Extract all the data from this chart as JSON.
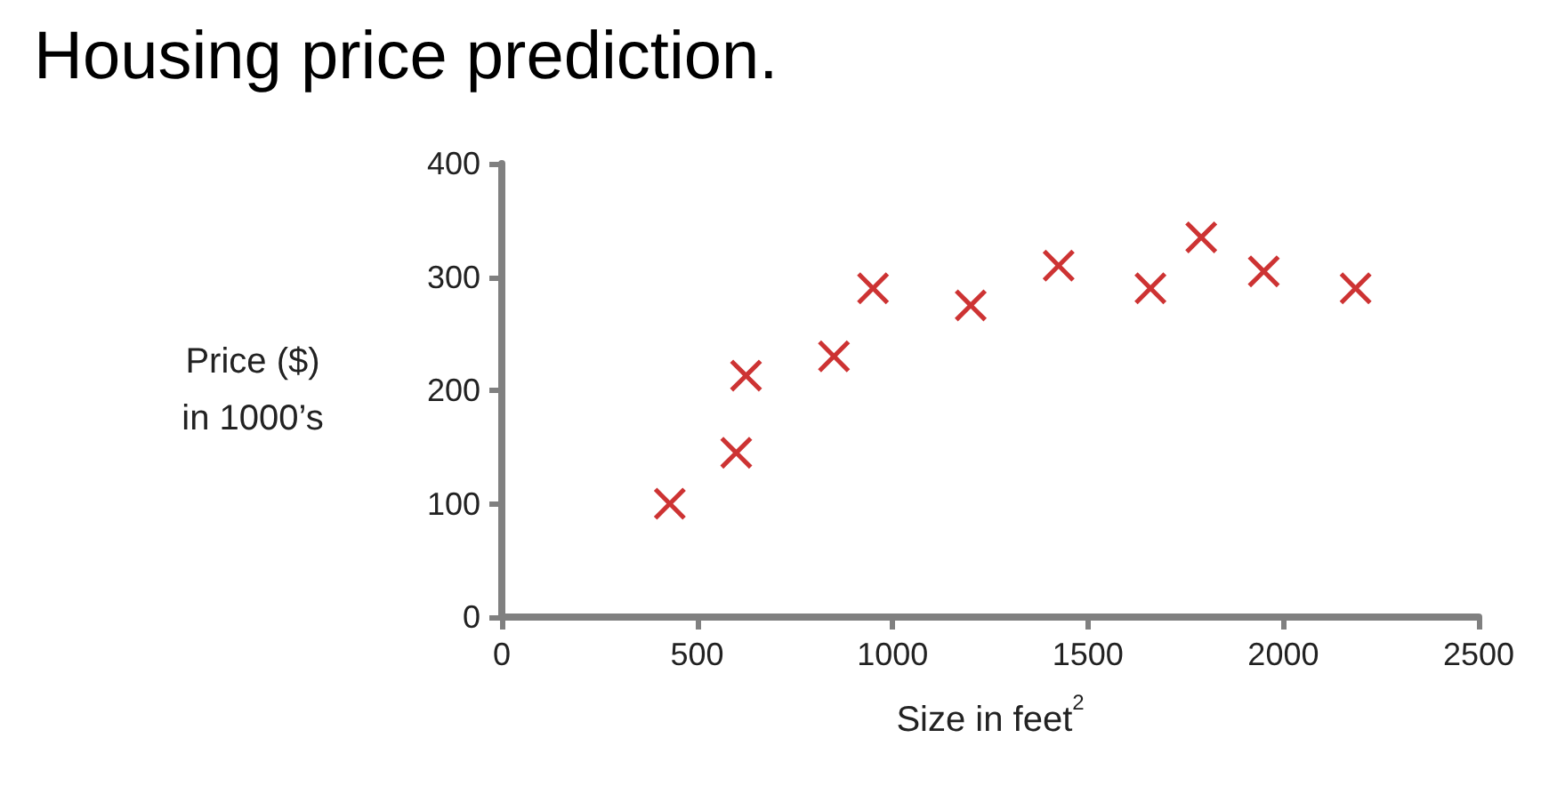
{
  "chart_data": {
    "type": "scatter",
    "title": "Housing price prediction.",
    "xlabel": "Size in feet$^{2}$",
    "ylabel": "Price ($)\nin 1000’s",
    "x": [
      430,
      600,
      625,
      850,
      950,
      1200,
      1425,
      1660,
      1790,
      1950,
      2185
    ],
    "values": [
      100,
      145,
      213,
      230,
      290,
      275,
      310,
      290,
      335,
      305,
      290
    ],
    "color": "#c00000",
    "marker": "cross",
    "xlim": [
      0,
      2500
    ],
    "xticks": [
      0,
      500,
      1000,
      1500,
      2000,
      2500
    ],
    "ylim": [
      0,
      400
    ],
    "yticks": [
      0,
      100,
      200,
      300,
      400
    ],
    "grid": false
  }
}
